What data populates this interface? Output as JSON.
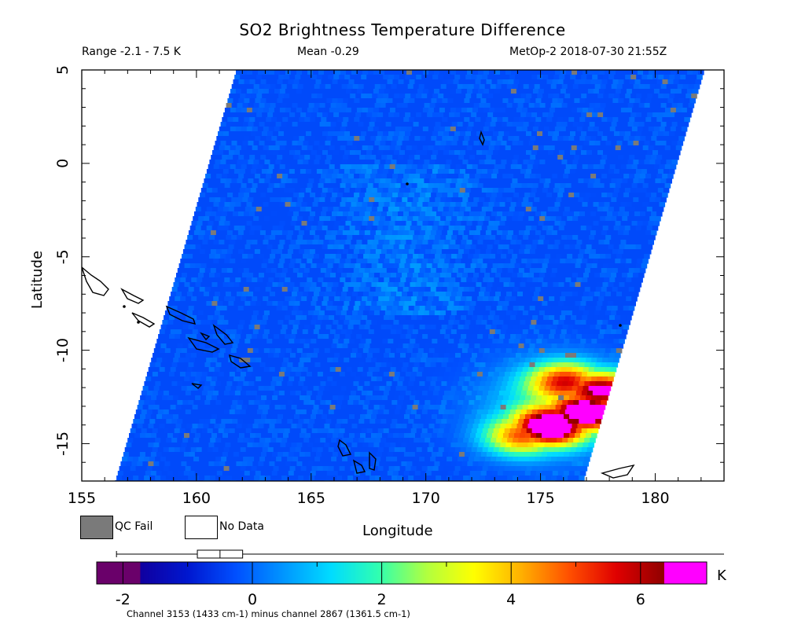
{
  "header": {
    "title": "SO2 Brightness Temperature Difference",
    "range": "Range -2.1 - 7.5 K",
    "mean": "Mean -0.29",
    "satellite_time": "MetOp-2 2018-07-30 21:55Z"
  },
  "legend": {
    "qc_fail": "QC Fail",
    "no_data": "No Data",
    "qc_color": "#7a7a7a",
    "no_data_color": "#ffffff"
  },
  "colorbar": {
    "unit": "K",
    "ticks": [
      "-2",
      "0",
      "2",
      "4",
      "6"
    ],
    "range": [
      -2.4,
      6.7
    ],
    "boxplot": {
      "min": -2.1,
      "q1": -0.85,
      "median": -0.5,
      "q3": -0.15,
      "max": 7.5
    },
    "caption": "Channel 3153 (1433 cm-1) minus channel 2867 (1361.5 cm-1)",
    "colors": [
      "#6a006a",
      "#1000a0",
      "#0018d0",
      "#0050ff",
      "#0096ff",
      "#00dcff",
      "#30ffb0",
      "#b0ff40",
      "#ffff00",
      "#ffb000",
      "#ff5000",
      "#e00000",
      "#900000",
      "#ff00ff"
    ]
  },
  "chart_data": {
    "type": "heatmap",
    "title": "SO2 Brightness Temperature Difference",
    "xlabel": "Longitude",
    "ylabel": "Latitude",
    "xlim": [
      155,
      183
    ],
    "ylim": [
      -17,
      5
    ],
    "xticks": [
      "155",
      "160",
      "165",
      "170",
      "175",
      "180"
    ],
    "yticks": [
      "5",
      "0",
      "-5",
      "-10",
      "-15"
    ],
    "value_units": "K",
    "background_value": -0.5,
    "plume": {
      "lon_range": [
        172.5,
        178
      ],
      "lat_range": [
        -15,
        -10
      ],
      "peak_value": 7.5
    },
    "hotspots": [
      {
        "lon": 175.3,
        "lat": -14,
        "value": 7.0
      },
      {
        "lon": 177.0,
        "lat": -13.2,
        "value": 6.8
      },
      {
        "lon": 177.6,
        "lat": -12.0,
        "value": 6.0
      },
      {
        "lon": 176.0,
        "lat": -11.5,
        "value": 4.5
      },
      {
        "lon": 174.0,
        "lat": -14.5,
        "value": 4.0
      }
    ]
  }
}
